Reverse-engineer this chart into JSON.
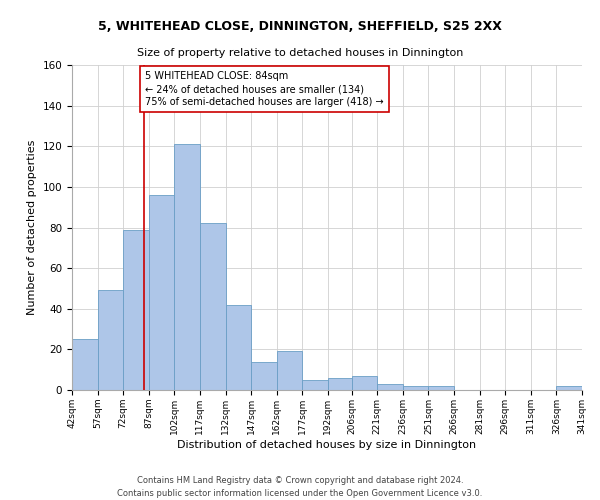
{
  "title1": "5, WHITEHEAD CLOSE, DINNINGTON, SHEFFIELD, S25 2XX",
  "title2": "Size of property relative to detached houses in Dinnington",
  "xlabel": "Distribution of detached houses by size in Dinnington",
  "ylabel": "Number of detached properties",
  "footnote": "Contains HM Land Registry data © Crown copyright and database right 2024.\nContains public sector information licensed under the Open Government Licence v3.0.",
  "annotation_line1": "5 WHITEHEAD CLOSE: 84sqm",
  "annotation_line2": "← 24% of detached houses are smaller (134)",
  "annotation_line3": "75% of semi-detached houses are larger (418) →",
  "bar_color": "#aec6e8",
  "bar_edge_color": "#6a9ec5",
  "grid_color": "#d0d0d0",
  "annotation_box_color": "#cc0000",
  "vline_color": "#cc0000",
  "vline_x": 84,
  "ylim": [
    0,
    160
  ],
  "yticks": [
    0,
    20,
    40,
    60,
    80,
    100,
    120,
    140,
    160
  ],
  "bin_edges": [
    42,
    57,
    72,
    87,
    102,
    117,
    132,
    147,
    162,
    177,
    192,
    206,
    221,
    236,
    251,
    266,
    281,
    296,
    311,
    326,
    341
  ],
  "histogram_values": [
    25,
    49,
    79,
    96,
    121,
    82,
    42,
    14,
    19,
    5,
    6,
    7,
    3,
    2,
    2,
    0,
    0,
    0,
    0,
    2
  ],
  "title1_fontsize": 9.0,
  "title2_fontsize": 8.0,
  "ylabel_fontsize": 8.0,
  "xlabel_fontsize": 8.0,
  "footnote_fontsize": 6.0,
  "annotation_fontsize": 7.0,
  "xtick_fontsize": 6.5,
  "ytick_fontsize": 7.5
}
